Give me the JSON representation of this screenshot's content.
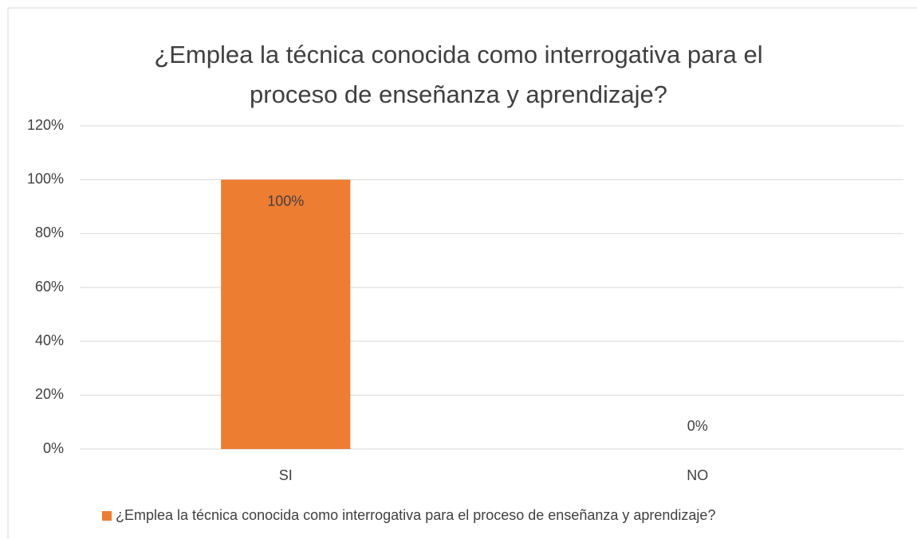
{
  "chart_data": {
    "type": "bar",
    "title": "¿Emplea la técnica conocida como interrogativa para el proceso de enseñanza y aprendizaje?",
    "categories": [
      "SI",
      "NO"
    ],
    "series": [
      {
        "name": "¿Emplea la técnica conocida como interrogativa para el proceso de enseñanza y aprendizaje?",
        "color": "#ed7d31",
        "values": [
          100,
          0
        ],
        "value_labels": [
          "100%",
          "0%"
        ]
      }
    ],
    "ylim": [
      0,
      120
    ],
    "yticks": [
      {
        "value": 0,
        "label": "0%"
      },
      {
        "value": 20,
        "label": "20%"
      },
      {
        "value": 40,
        "label": "40%"
      },
      {
        "value": 60,
        "label": "60%"
      },
      {
        "value": 80,
        "label": "80%"
      },
      {
        "value": 100,
        "label": "100%"
      },
      {
        "value": 120,
        "label": "120%"
      }
    ],
    "grid": true,
    "legend": "bottom"
  }
}
